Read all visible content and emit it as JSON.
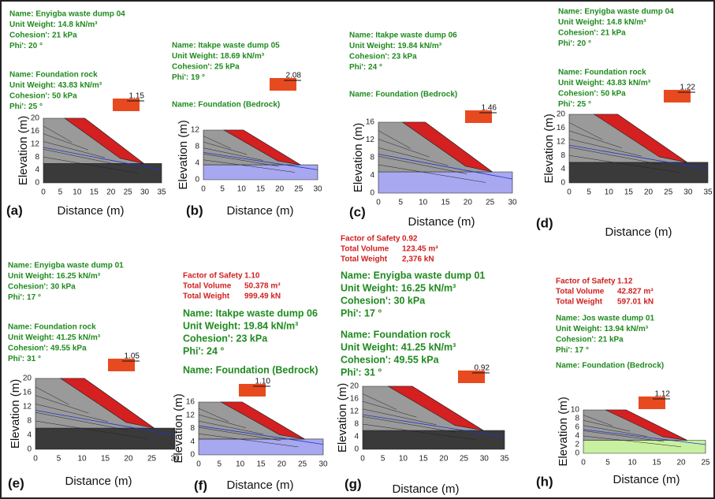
{
  "panels": [
    {
      "label": "(a)",
      "info": [
        "Name: Enyigba waste dump 04",
        "Unit Weight: 14.8 kN/m³",
        "Cohesion': 21 kPa",
        "Phi': 20 °"
      ],
      "info2": [
        "Name: Foundation rock",
        "Unit Weight: 43.83 kN/m³",
        "Cohesion': 50 kPa",
        "Phi': 25 °"
      ],
      "fos": "1.15",
      "xlabel": "Distance (m)",
      "ylabel": "Elevation (m)",
      "xticks": [
        "0",
        "5",
        "10",
        "15",
        "20",
        "25",
        "30",
        "35"
      ],
      "yticks": [
        "20",
        "16",
        "12",
        "8",
        "4",
        "0"
      ]
    },
    {
      "label": "(b)",
      "info": [
        "Name: Itakpe waste dump 05",
        "Unit Weight: 18.69 kN/m³",
        "Cohesion': 25 kPa",
        "Phi': 19 °"
      ],
      "info2": [
        "Name: Foundation (Bedrock)"
      ],
      "fos": "2.08",
      "xlabel": "Distance (m)",
      "ylabel": "Elevation (m)",
      "xticks": [
        "0",
        "5",
        "10",
        "15",
        "20",
        "25",
        "30"
      ],
      "yticks": [
        "12",
        "8",
        "4",
        "0"
      ]
    },
    {
      "label": "(c)",
      "info": [
        "Name: Itakpe waste dump 06",
        "Unit Weight: 19.84 kN/m³",
        "Cohesion': 23 kPa",
        "Phi': 24 °"
      ],
      "info2": [
        "Name: Foundation (Bedrock)"
      ],
      "fos": "1.46",
      "xlabel": "Distance (m)",
      "ylabel": "Elevation (m)",
      "xticks": [
        "0",
        "5",
        "10",
        "15",
        "20",
        "25",
        "30"
      ],
      "yticks": [
        "16",
        "12",
        "8",
        "4",
        "0"
      ]
    },
    {
      "label": "(d)",
      "info": [
        "Name: Enyigba waste dump 04",
        "Unit Weight: 14.8 kN/m³",
        "Cohesion': 21 kPa",
        "Phi': 20 °"
      ],
      "info2": [
        "Name: Foundation rock",
        "Unit Weight: 43.83 kN/m³",
        "Cohesion': 50 kPa",
        "Phi': 25 °"
      ],
      "fos": "1.22",
      "xlabel": "Distance (m)",
      "ylabel": "Elevation (m)",
      "xticks": [
        "0",
        "5",
        "10",
        "15",
        "20",
        "25",
        "30",
        "35"
      ],
      "yticks": [
        "20",
        "16",
        "12",
        "8",
        "4",
        "0"
      ]
    },
    {
      "label": "(e)",
      "info": [
        "Name: Enyigba waste dump 01",
        "Unit Weight: 16.25 kN/m³",
        "Cohesion': 30 kPa",
        "Phi': 17 °"
      ],
      "info2": [
        "Name: Foundation rock",
        "Unit Weight: 41.25 kN/m³",
        "Cohesion': 49.55 kPa",
        "Phi': 31 °"
      ],
      "fos": "1.05",
      "xlabel": "Distance (m)",
      "ylabel": "Elevation (m)",
      "xticks": [
        "0",
        "5",
        "10",
        "15",
        "20",
        "25",
        "30"
      ],
      "yticks": [
        "20",
        "16",
        "12",
        "8",
        "4",
        "0"
      ]
    },
    {
      "label": "(f)",
      "summary": [
        [
          "Factor of Safety",
          "1.10"
        ],
        [
          "Total Volume",
          "50.378 m³"
        ],
        [
          "Total Weight",
          "999.49 kN"
        ]
      ],
      "info": [
        "Name: Itakpe waste dump 06",
        "Unit Weight: 19.84 kN/m³",
        "Cohesion': 23 kPa",
        "Phi': 24 °"
      ],
      "info2": [
        "Name: Foundation (Bedrock)"
      ],
      "fos": "1.10",
      "xlabel": "Distance (m)",
      "ylabel": "Elevation (m)",
      "xticks": [
        "0",
        "5",
        "10",
        "15",
        "20",
        "25",
        "30"
      ],
      "yticks": [
        "16",
        "12",
        "8",
        "4",
        "0"
      ]
    },
    {
      "label": "(g)",
      "summary": [
        [
          "Factor of Safety",
          "0.92"
        ],
        [
          "Total Volume",
          "123.45 m³"
        ],
        [
          "Total Weight",
          "2,376 kN"
        ]
      ],
      "info": [
        "Name: Enyigba waste dump 01",
        "Unit Weight: 16.25 kN/m³",
        "Cohesion': 30 kPa",
        "Phi': 17 °"
      ],
      "info2": [
        "Name: Foundation rock",
        "Unit Weight: 41.25 kN/m³",
        "Cohesion': 49.55 kPa",
        "Phi': 31 °"
      ],
      "fos": "0.92",
      "xlabel": "Distance (m)",
      "ylabel": "Elevation (m)",
      "xticks": [
        "0",
        "5",
        "10",
        "15",
        "20",
        "25",
        "30",
        "35"
      ],
      "yticks": [
        "20",
        "16",
        "12",
        "8",
        "4",
        "0"
      ]
    },
    {
      "label": "(h)",
      "summary": [
        [
          "Factor of Safety",
          "1.12"
        ],
        [
          "Total Volume",
          "42.827 m³"
        ],
        [
          "Total Weight",
          "597.01 kN"
        ]
      ],
      "info": [
        "Name: Jos waste dump 01",
        "Unit Weight: 13.94 kN/m³",
        "Cohesion': 21 kPa",
        "Phi': 17 °"
      ],
      "info2": [
        "Name: Foundation (Bedrock)"
      ],
      "fos": "1.12",
      "xlabel": "Distance (m)",
      "ylabel": "Elevation (m)",
      "xticks": [
        "0",
        "5",
        "10",
        "15",
        "20",
        "25"
      ],
      "yticks": [
        "10",
        "8",
        "6",
        "4",
        "2",
        "0"
      ]
    }
  ]
}
